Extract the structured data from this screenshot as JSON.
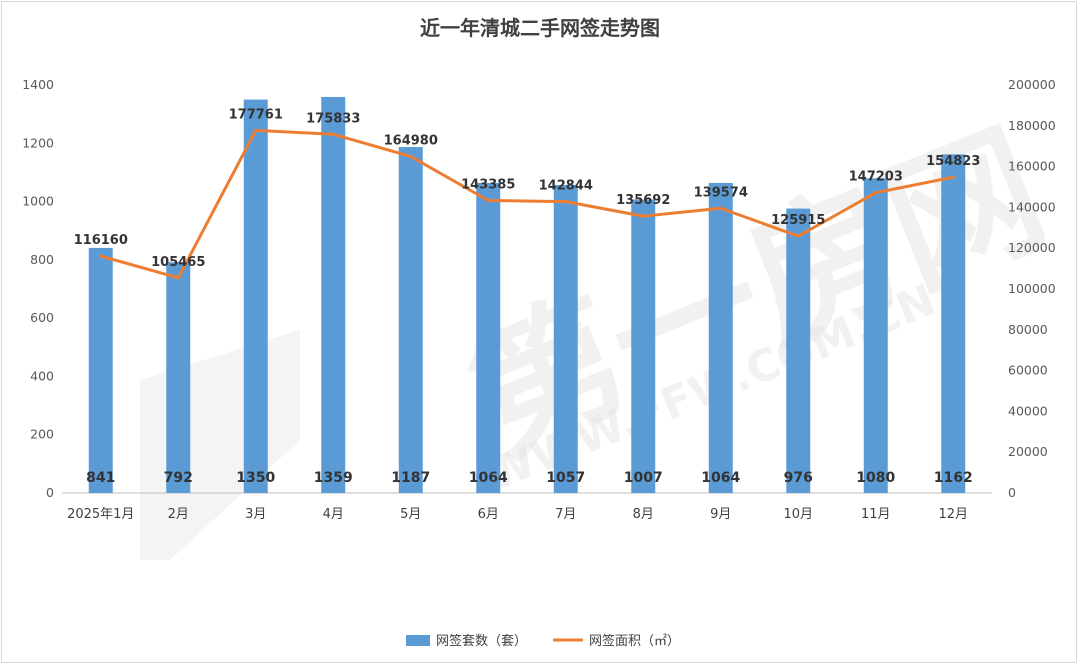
{
  "chart_data": {
    "type": "bar",
    "title": "近一年清城二手网签走势图",
    "categories": [
      "2025年1月",
      "2月",
      "3月",
      "4月",
      "5月",
      "6月",
      "7月",
      "8月",
      "9月",
      "10月",
      "11月",
      "12月"
    ],
    "series": [
      {
        "name": "网签套数（套）",
        "type": "bar",
        "axis": "left",
        "color": "#5b9bd5",
        "values": [
          841,
          792,
          1350,
          1359,
          1187,
          1064,
          1057,
          1007,
          1064,
          976,
          1080,
          1162
        ]
      },
      {
        "name": "网签面积（㎡）",
        "type": "line",
        "axis": "right",
        "color": "#ed7d31",
        "values": [
          116160,
          105465,
          177761,
          175833,
          164980,
          143385,
          142844,
          135692,
          139574,
          125915,
          147203,
          154823
        ]
      }
    ],
    "y_left": {
      "ylim": [
        0,
        1400
      ],
      "ticks": [
        "0",
        "200",
        "400",
        "600",
        "800",
        "1000",
        "1200",
        "1400"
      ]
    },
    "y_right": {
      "ylim": [
        0,
        200000
      ],
      "ticks": [
        "0",
        "20000",
        "40000",
        "60000",
        "80000",
        "100000",
        "120000",
        "140000",
        "160000",
        "180000",
        "200000"
      ]
    },
    "grid": false,
    "legend": "bottom-center"
  },
  "watermark": {
    "text": "第一房网",
    "url_text": "WWW.FFW.COM.CN"
  }
}
